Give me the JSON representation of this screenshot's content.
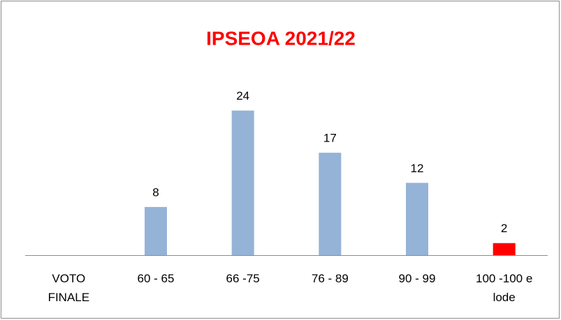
{
  "chart_data": {
    "type": "bar",
    "title": "IPSEOA 2021/22",
    "categories": [
      "VOTO FINALE",
      "60 - 65",
      "66 -75",
      "76 - 89",
      "90 - 99",
      "100 -100 e lode"
    ],
    "values": [
      null,
      8,
      24,
      17,
      12,
      2
    ],
    "colors": [
      "#95b3d7",
      "#95b3d7",
      "#95b3d7",
      "#95b3d7",
      "#95b3d7",
      "#ff0000"
    ],
    "ylim": [
      0,
      28
    ]
  }
}
